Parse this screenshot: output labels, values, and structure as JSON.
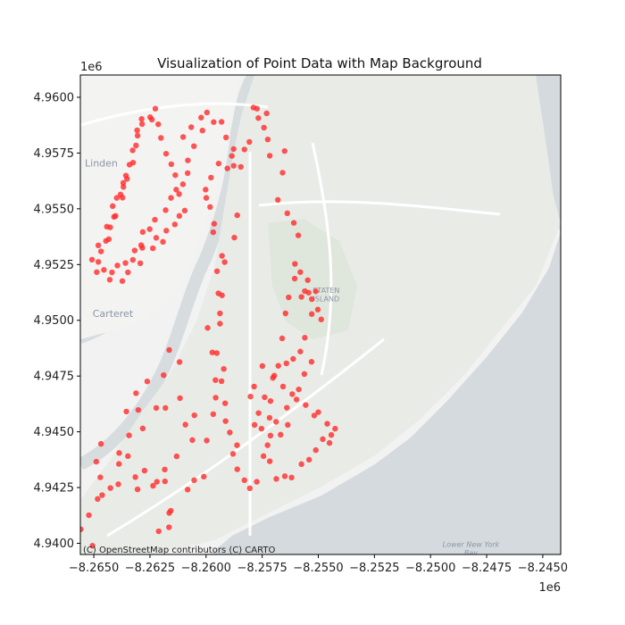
{
  "chart_data": {
    "type": "scatter",
    "title": "Visualization of Point Data with Map Background",
    "xlabel": "",
    "ylabel": "",
    "x_offset_label": "1e6",
    "y_offset_label": "1e6",
    "xlim": [
      -8.2656,
      -8.2442
    ],
    "ylim": [
      4.9395,
      4.961
    ],
    "xticks": [
      -8.265,
      -8.2625,
      -8.26,
      -8.2575,
      -8.255,
      -8.2525,
      -8.25,
      -8.2475,
      -8.245
    ],
    "xtick_labels": [
      "−8.2650",
      "−8.2625",
      "−8.2600",
      "−8.2575",
      "−8.2550",
      "−8.2525",
      "−8.2500",
      "−8.2475",
      "−8.2450"
    ],
    "yticks": [
      4.94,
      4.9425,
      4.945,
      4.9475,
      4.95,
      4.9525,
      4.955,
      4.9575,
      4.96
    ],
    "ytick_labels": [
      "4.9400",
      "4.9425",
      "4.9450",
      "4.9475",
      "4.9500",
      "4.9525",
      "4.9550",
      "4.9575",
      "4.9600"
    ],
    "grid": false,
    "legend": "none",
    "marker_color": "#ff2a2a",
    "background": "map tiles (light)",
    "map_labels": [
      {
        "text": "Linden",
        "x": -8.2654,
        "y": 4.9569
      },
      {
        "text": "Carteret",
        "x": -8.26415,
        "y": 4.95015
      },
      {
        "text": "STATEN",
        "x": -8.25465,
        "y": 4.95124
      },
      {
        "text": "ISLAND",
        "x": -8.25465,
        "y": 4.95085
      },
      {
        "text": "Lower New York",
        "x": -8.2482,
        "y": 4.93985
      },
      {
        "text": "Bay",
        "x": -8.2482,
        "y": 4.93945
      }
    ],
    "attribution": "(C) OpenStreetMap contributors (C) CARTO",
    "points": [
      [
        -8.26558,
        4.94063
      ],
      [
        -8.26506,
        4.93989
      ],
      [
        -8.26522,
        4.94126
      ],
      [
        -8.26483,
        4.94199
      ],
      [
        -8.26463,
        4.94216
      ],
      [
        -8.26471,
        4.94296
      ],
      [
        -8.26489,
        4.94366
      ],
      [
        -8.26468,
        4.94446
      ],
      [
        -8.26426,
        4.94248
      ],
      [
        -8.26388,
        4.94356
      ],
      [
        -8.26387,
        4.94405
      ],
      [
        -8.26348,
        4.94391
      ],
      [
        -8.26343,
        4.94484
      ],
      [
        -8.26355,
        4.94591
      ],
      [
        -8.26391,
        4.94265
      ],
      [
        -8.26315,
        4.94297
      ],
      [
        -8.26305,
        4.94242
      ],
      [
        -8.26274,
        4.94326
      ],
      [
        -8.26236,
        4.94258
      ],
      [
        -8.26219,
        4.94276
      ],
      [
        -8.26184,
        4.94331
      ],
      [
        -8.26183,
        4.94278
      ],
      [
        -8.26165,
        4.94072
      ],
      [
        -8.26164,
        4.94136
      ],
      [
        -8.26157,
        4.94146
      ],
      [
        -8.26211,
        4.94054
      ],
      [
        -8.26312,
        4.94673
      ],
      [
        -8.26262,
        4.94726
      ],
      [
        -8.26302,
        4.94598
      ],
      [
        -8.26282,
        4.94515
      ],
      [
        -8.26222,
        4.94607
      ],
      [
        -8.26181,
        4.94607
      ],
      [
        -8.26189,
        4.94754
      ],
      [
        -8.26164,
        4.94867
      ],
      [
        -8.26131,
        4.9439
      ],
      [
        -8.26082,
        4.94241
      ],
      [
        -8.26092,
        4.94532
      ],
      [
        -8.26116,
        4.94651
      ],
      [
        -8.26118,
        4.94813
      ],
      [
        -8.26061,
        4.94463
      ],
      [
        -8.26052,
        4.94574
      ],
      [
        -8.26053,
        4.94283
      ],
      [
        -8.2601,
        4.94299
      ],
      [
        -8.25997,
        4.94461
      ],
      [
        -8.25968,
        4.94579
      ],
      [
        -8.25957,
        4.94653
      ],
      [
        -8.25958,
        4.94732
      ],
      [
        -8.25952,
        4.94853
      ],
      [
        -8.25938,
        4.94985
      ],
      [
        -8.25929,
        4.95112
      ],
      [
        -8.25917,
        4.95261
      ],
      [
        -8.25874,
        4.95371
      ],
      [
        -8.25861,
        4.95471
      ],
      [
        -8.25845,
        4.95688
      ],
      [
        -8.25829,
        4.95766
      ],
      [
        -8.25807,
        4.958
      ],
      [
        -8.25789,
        4.95954
      ],
      [
        -8.25773,
        4.95949
      ],
      [
        -8.25767,
        4.95907
      ],
      [
        -8.2573,
        4.95928
      ],
      [
        -8.25742,
        4.95864
      ],
      [
        -8.25725,
        4.95811
      ],
      [
        -8.25716,
        4.95738
      ],
      [
        -8.2565,
        4.95759
      ],
      [
        -8.25659,
        4.95662
      ],
      [
        -8.2568,
        4.9554
      ],
      [
        -8.25638,
        4.9548
      ],
      [
        -8.25609,
        4.95437
      ],
      [
        -8.25589,
        4.95381
      ],
      [
        -8.25604,
        4.95253
      ],
      [
        -8.2558,
        4.95216
      ],
      [
        -8.25605,
        4.95187
      ],
      [
        -8.25547,
        4.9518
      ],
      [
        -8.25543,
        4.95124
      ],
      [
        -8.25502,
        4.95048
      ],
      [
        -8.25487,
        4.95004
      ],
      [
        -8.25529,
        4.95028
      ],
      [
        -8.25529,
        4.95095
      ],
      [
        -8.25511,
        4.9513
      ],
      [
        -8.2556,
        4.95131
      ],
      [
        -8.25575,
        4.95105
      ],
      [
        -8.25632,
        4.95103
      ],
      [
        -8.25646,
        4.95031
      ],
      [
        -8.25661,
        4.94919
      ],
      [
        -8.25678,
        4.94796
      ],
      [
        -8.25702,
        4.94742
      ],
      [
        -8.25713,
        4.94638
      ],
      [
        -8.25717,
        4.94563
      ],
      [
        -8.25713,
        4.94483
      ],
      [
        -8.25668,
        4.94487
      ],
      [
        -8.25636,
        4.94531
      ],
      [
        -8.2564,
        4.94608
      ],
      [
        -8.25616,
        4.94669
      ],
      [
        -8.25657,
        4.94703
      ],
      [
        -8.25696,
        4.94752
      ],
      [
        -8.25642,
        4.94807
      ],
      [
        -8.25612,
        4.94827
      ],
      [
        -8.2558,
        4.9486
      ],
      [
        -8.2556,
        4.94922
      ],
      [
        -8.2553,
        4.94814
      ],
      [
        -8.25562,
        4.94759
      ],
      [
        -8.25587,
        4.9469
      ],
      [
        -8.25597,
        4.94645
      ],
      [
        -8.25556,
        4.9462
      ],
      [
        -8.25518,
        4.94573
      ],
      [
        -8.255,
        4.94588
      ],
      [
        -8.2546,
        4.94536
      ],
      [
        -8.25425,
        4.94514
      ],
      [
        -8.25442,
        4.94486
      ],
      [
        -8.2545,
        4.9445
      ],
      [
        -8.2548,
        4.94467
      ],
      [
        -8.25511,
        4.94418
      ],
      [
        -8.25541,
        4.94375
      ],
      [
        -8.25575,
        4.94355
      ],
      [
        -8.25619,
        4.94295
      ],
      [
        -8.25649,
        4.94301
      ],
      [
        -8.25687,
        4.94289
      ],
      [
        -8.25716,
        4.94368
      ],
      [
        -8.25726,
        4.9444
      ],
      [
        -8.25688,
        4.94545
      ],
      [
        -8.25753,
        4.94514
      ],
      [
        -8.25739,
        4.94655
      ],
      [
        -8.25749,
        4.94795
      ],
      [
        -8.25786,
        4.94703
      ],
      [
        -8.25802,
        4.94658
      ],
      [
        -8.25766,
        4.94584
      ],
      [
        -8.25784,
        4.94531
      ],
      [
        -8.25744,
        4.94391
      ],
      [
        -8.25774,
        4.94276
      ],
      [
        -8.25805,
        4.94247
      ],
      [
        -8.25829,
        4.94283
      ],
      [
        -8.25861,
        4.94332
      ],
      [
        -8.2588,
        4.94401
      ],
      [
        -8.25862,
        4.9444
      ],
      [
        -8.25894,
        4.94497
      ],
      [
        -8.25913,
        4.94548
      ],
      [
        -8.25915,
        4.94628
      ],
      [
        -8.25931,
        4.94727
      ],
      [
        -8.25921,
        4.94782
      ],
      [
        -8.25972,
        4.94856
      ],
      [
        -8.25993,
        4.94966
      ],
      [
        -8.25938,
        4.95031
      ],
      [
        -8.25945,
        4.95121
      ],
      [
        -8.25951,
        4.9522
      ],
      [
        -8.25929,
        4.95289
      ],
      [
        -8.25968,
        4.95395
      ],
      [
        -8.25964,
        4.95433
      ],
      [
        -8.25982,
        4.95508
      ],
      [
        -8.25999,
        4.95549
      ],
      [
        -8.26002,
        4.95586
      ],
      [
        -8.25978,
        4.9564
      ],
      [
        -8.25944,
        4.95703
      ],
      [
        -8.25905,
        4.95681
      ],
      [
        -8.25877,
        4.95693
      ],
      [
        -8.25885,
        4.95737
      ],
      [
        -8.25877,
        4.95768
      ],
      [
        -8.25911,
        4.9582
      ],
      [
        -8.25931,
        4.9589
      ],
      [
        -8.25966,
        4.95889
      ],
      [
        -8.25996,
        4.95932
      ],
      [
        -8.26022,
        4.95909
      ],
      [
        -8.26016,
        4.95851
      ],
      [
        -8.26066,
        4.95866
      ],
      [
        -8.26054,
        4.95781
      ],
      [
        -8.26102,
        4.95822
      ],
      [
        -8.26081,
        4.95717
      ],
      [
        -8.26082,
        4.9566
      ],
      [
        -8.26103,
        4.9561
      ],
      [
        -8.2612,
        4.95566
      ],
      [
        -8.26119,
        4.95468
      ],
      [
        -8.26095,
        4.95492
      ],
      [
        -8.26139,
        4.9543
      ],
      [
        -8.26177,
        4.95402
      ],
      [
        -8.26192,
        4.95352
      ],
      [
        -8.26222,
        4.9537
      ],
      [
        -8.26237,
        4.95323
      ],
      [
        -8.26284,
        4.95325
      ],
      [
        -8.26293,
        4.95256
      ],
      [
        -8.26326,
        4.95271
      ],
      [
        -8.26348,
        4.95215
      ],
      [
        -8.26373,
        4.95176
      ],
      [
        -8.26429,
        4.95182
      ],
      [
        -8.26487,
        4.95216
      ],
      [
        -8.26508,
        4.95272
      ],
      [
        -8.2648,
        4.95336
      ],
      [
        -8.26446,
        4.95356
      ],
      [
        -8.26442,
        4.9542
      ],
      [
        -8.26403,
        4.95468
      ],
      [
        -8.26398,
        4.95549
      ],
      [
        -8.26372,
        4.9555
      ],
      [
        -8.26368,
        4.95598
      ],
      [
        -8.26352,
        4.95634
      ],
      [
        -8.26325,
        4.95707
      ],
      [
        -8.26312,
        4.95784
      ],
      [
        -8.26307,
        4.95852
      ],
      [
        -8.26287,
        4.95903
      ],
      [
        -8.26241,
        4.959
      ],
      [
        -8.26213,
        4.95879
      ],
      [
        -8.26201,
        4.95818
      ],
      [
        -8.26178,
        4.95747
      ],
      [
        -8.26155,
        4.957
      ],
      [
        -8.26137,
        4.95651
      ],
      [
        -8.26133,
        4.95586
      ],
      [
        -8.26156,
        4.95549
      ],
      [
        -8.2618,
        4.95494
      ],
      [
        -8.26228,
        4.95451
      ],
      [
        -8.26251,
        4.95409
      ],
      [
        -8.26282,
        4.95396
      ],
      [
        -8.26289,
        4.95337
      ],
      [
        -8.26318,
        4.95313
      ],
      [
        -8.26359,
        4.95257
      ],
      [
        -8.26395,
        4.95246
      ],
      [
        -8.26419,
        4.95215
      ],
      [
        -8.26455,
        4.95226
      ],
      [
        -8.2648,
        4.95262
      ],
      [
        -8.26468,
        4.95309
      ],
      [
        -8.26433,
        4.95364
      ],
      [
        -8.26427,
        4.95417
      ],
      [
        -8.2641,
        4.95464
      ],
      [
        -8.26416,
        4.95512
      ],
      [
        -8.26381,
        4.95564
      ],
      [
        -8.26369,
        4.95616
      ],
      [
        -8.26357,
        4.95649
      ],
      [
        -8.26341,
        4.95698
      ],
      [
        -8.26327,
        4.95762
      ],
      [
        -8.26305,
        4.95828
      ],
      [
        -8.26285,
        4.9588
      ],
      [
        -8.26249,
        4.95911
      ],
      [
        -8.26226,
        4.95949
      ]
    ]
  }
}
